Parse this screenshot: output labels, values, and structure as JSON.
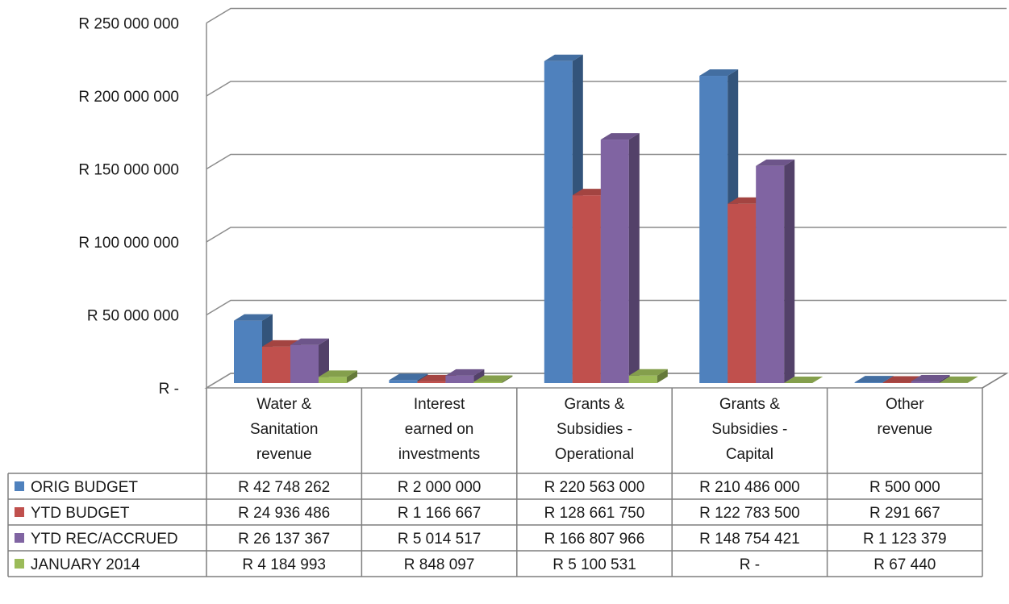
{
  "chart_data": {
    "type": "bar",
    "style": "3d-clustered-column-with-data-table",
    "categories": [
      [
        "Water &",
        "Sanitation",
        "revenue"
      ],
      [
        "Interest",
        "earned on",
        "investments"
      ],
      [
        "Grants &",
        "Subsidies -",
        "Operational"
      ],
      [
        "Grants &",
        "Subsidies -",
        "Capital"
      ],
      [
        "Other",
        "revenue"
      ]
    ],
    "series": [
      {
        "name": "ORIG BUDGET",
        "color": "#4F81BD",
        "values": [
          42748262,
          2000000,
          220563000,
          210486000,
          500000
        ],
        "labels": [
          "R 42 748 262",
          "R 2 000 000",
          "R 220 563 000",
          "R 210 486 000",
          "R 500 000"
        ]
      },
      {
        "name": "YTD BUDGET",
        "color": "#C0504D",
        "values": [
          24936486,
          1166667,
          128661750,
          122783500,
          291667
        ],
        "labels": [
          "R 24 936 486",
          "R 1 166 667",
          "R 128 661 750",
          "R 122 783 500",
          "R 291 667"
        ]
      },
      {
        "name": "YTD REC/ACCRUED",
        "color": "#8064A2",
        "values": [
          26137367,
          5014517,
          166807966,
          148754421,
          1123379
        ],
        "labels": [
          "R 26 137 367",
          "R 5 014 517",
          "R 166 807 966",
          "R 148 754 421",
          "R 1 123 379"
        ]
      },
      {
        "name": "JANUARY 2014",
        "color": "#9BBB59",
        "values": [
          4184993,
          848097,
          5100531,
          0,
          67440
        ],
        "labels": [
          "R 4 184 993",
          "R 848 097",
          "R 5 100 531",
          "R -",
          "R 67 440"
        ]
      }
    ],
    "ylim": [
      0,
      250000000
    ],
    "yticks": [
      0,
      50000000,
      100000000,
      150000000,
      200000000,
      250000000
    ],
    "ytick_labels": [
      "R -",
      "R 50 000 000",
      "R 100 000 000",
      "R 150 000 000",
      "R 200 000 000",
      "R 250 000 000"
    ],
    "grid": true,
    "legend": "data-table-left"
  }
}
